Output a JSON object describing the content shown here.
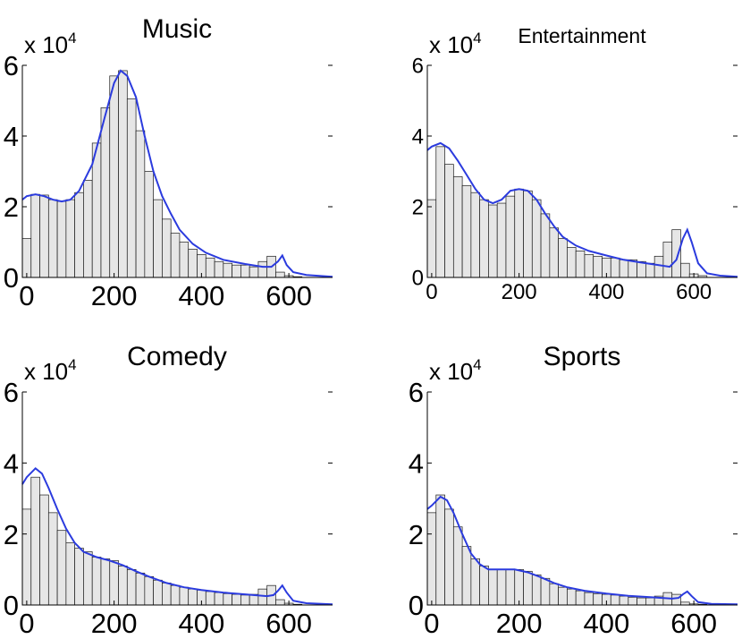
{
  "colors": {
    "bar_fill": "#e6e6e6",
    "bar_edge": "#1a1a1a",
    "curve": "#2b3bde"
  },
  "chart_data": [
    {
      "type": "bar",
      "title": "Music",
      "scale_label": "x 10",
      "scale_exponent": "4",
      "x_range": [
        -10,
        700
      ],
      "ylim": [
        0,
        6
      ],
      "x_ticks": [
        0,
        200,
        400,
        600
      ],
      "y_ticks": [
        0,
        2,
        4,
        6
      ],
      "bin_width": 20,
      "values": [
        1.1,
        2.35,
        2.33,
        2.2,
        2.15,
        2.2,
        2.4,
        2.75,
        3.8,
        4.8,
        5.7,
        5.85,
        5.05,
        4.15,
        3.0,
        2.2,
        1.65,
        1.25,
        1.0,
        0.8,
        0.65,
        0.55,
        0.45,
        0.4,
        0.35,
        0.35,
        0.3,
        0.45,
        0.6,
        0.15,
        0.05,
        0.02
      ],
      "curve": [
        [
          -10,
          2.2
        ],
        [
          0,
          2.3
        ],
        [
          20,
          2.35
        ],
        [
          40,
          2.3
        ],
        [
          60,
          2.2
        ],
        [
          80,
          2.15
        ],
        [
          100,
          2.2
        ],
        [
          120,
          2.45
        ],
        [
          150,
          3.2
        ],
        [
          180,
          4.6
        ],
        [
          200,
          5.5
        ],
        [
          215,
          5.85
        ],
        [
          230,
          5.7
        ],
        [
          250,
          5.1
        ],
        [
          270,
          4.0
        ],
        [
          290,
          3.0
        ],
        [
          310,
          2.3
        ],
        [
          330,
          1.8
        ],
        [
          350,
          1.35
        ],
        [
          380,
          0.95
        ],
        [
          410,
          0.7
        ],
        [
          450,
          0.5
        ],
        [
          500,
          0.38
        ],
        [
          540,
          0.3
        ],
        [
          560,
          0.3
        ],
        [
          575,
          0.45
        ],
        [
          585,
          0.62
        ],
        [
          595,
          0.35
        ],
        [
          610,
          0.15
        ],
        [
          640,
          0.07
        ],
        [
          700,
          0.02
        ]
      ]
    },
    {
      "type": "bar",
      "title": "Entertainment",
      "scale_label": "x 10",
      "scale_exponent": "4",
      "x_range": [
        -10,
        700
      ],
      "ylim": [
        0,
        6
      ],
      "x_ticks": [
        0,
        200,
        400,
        600
      ],
      "y_ticks": [
        0,
        2,
        4,
        6
      ],
      "bin_width": 20,
      "values": [
        2.2,
        3.7,
        3.2,
        2.85,
        2.6,
        2.4,
        2.2,
        2.05,
        2.1,
        2.3,
        2.5,
        2.45,
        2.2,
        1.8,
        1.4,
        1.1,
        0.85,
        0.75,
        0.65,
        0.6,
        0.55,
        0.55,
        0.5,
        0.5,
        0.45,
        0.4,
        0.6,
        1.0,
        1.35,
        0.4,
        0.1,
        0.05
      ],
      "curve": [
        [
          -10,
          3.6
        ],
        [
          0,
          3.7
        ],
        [
          20,
          3.8
        ],
        [
          40,
          3.65
        ],
        [
          60,
          3.3
        ],
        [
          80,
          2.9
        ],
        [
          100,
          2.5
        ],
        [
          120,
          2.2
        ],
        [
          140,
          2.1
        ],
        [
          160,
          2.2
        ],
        [
          180,
          2.45
        ],
        [
          200,
          2.5
        ],
        [
          220,
          2.45
        ],
        [
          240,
          2.2
        ],
        [
          260,
          1.8
        ],
        [
          280,
          1.45
        ],
        [
          300,
          1.15
        ],
        [
          330,
          0.9
        ],
        [
          360,
          0.75
        ],
        [
          400,
          0.62
        ],
        [
          440,
          0.5
        ],
        [
          480,
          0.42
        ],
        [
          520,
          0.35
        ],
        [
          545,
          0.3
        ],
        [
          560,
          0.5
        ],
        [
          575,
          1.1
        ],
        [
          585,
          1.35
        ],
        [
          595,
          1.0
        ],
        [
          610,
          0.4
        ],
        [
          630,
          0.12
        ],
        [
          660,
          0.05
        ],
        [
          700,
          0.02
        ]
      ]
    },
    {
      "type": "bar",
      "title": "Comedy",
      "scale_label": "x 10",
      "scale_exponent": "4",
      "x_range": [
        -10,
        700
      ],
      "ylim": [
        0,
        6
      ],
      "x_ticks": [
        0,
        200,
        400,
        600
      ],
      "y_ticks": [
        0,
        2,
        4,
        6
      ],
      "bin_width": 20,
      "values": [
        2.7,
        3.6,
        3.1,
        2.6,
        2.1,
        1.75,
        1.6,
        1.5,
        1.35,
        1.3,
        1.25,
        1.1,
        1.0,
        0.9,
        0.8,
        0.7,
        0.62,
        0.55,
        0.5,
        0.45,
        0.42,
        0.38,
        0.35,
        0.32,
        0.3,
        0.28,
        0.3,
        0.45,
        0.55,
        0.15,
        0.05,
        0.02
      ],
      "curve": [
        [
          -10,
          3.4
        ],
        [
          0,
          3.6
        ],
        [
          20,
          3.85
        ],
        [
          35,
          3.7
        ],
        [
          50,
          3.3
        ],
        [
          70,
          2.7
        ],
        [
          90,
          2.15
        ],
        [
          110,
          1.75
        ],
        [
          130,
          1.5
        ],
        [
          160,
          1.35
        ],
        [
          190,
          1.25
        ],
        [
          220,
          1.12
        ],
        [
          250,
          0.95
        ],
        [
          280,
          0.8
        ],
        [
          320,
          0.62
        ],
        [
          360,
          0.5
        ],
        [
          400,
          0.42
        ],
        [
          450,
          0.35
        ],
        [
          500,
          0.3
        ],
        [
          550,
          0.25
        ],
        [
          565,
          0.28
        ],
        [
          575,
          0.4
        ],
        [
          585,
          0.55
        ],
        [
          595,
          0.35
        ],
        [
          610,
          0.12
        ],
        [
          640,
          0.05
        ],
        [
          700,
          0.02
        ]
      ]
    },
    {
      "type": "bar",
      "title": "Sports",
      "scale_label": "x 10",
      "scale_exponent": "4",
      "x_range": [
        -10,
        700
      ],
      "ylim": [
        0,
        6
      ],
      "x_ticks": [
        0,
        200,
        400,
        600
      ],
      "y_ticks": [
        0,
        2,
        4,
        6
      ],
      "bin_width": 20,
      "values": [
        2.6,
        3.1,
        2.7,
        2.2,
        1.65,
        1.3,
        1.1,
        1.0,
        1.0,
        1.0,
        1.0,
        0.95,
        0.85,
        0.75,
        0.6,
        0.5,
        0.45,
        0.4,
        0.35,
        0.32,
        0.3,
        0.28,
        0.25,
        0.22,
        0.2,
        0.2,
        0.25,
        0.35,
        0.3,
        0.08,
        0.03,
        0.02
      ],
      "curve": [
        [
          -10,
          2.7
        ],
        [
          0,
          2.8
        ],
        [
          20,
          3.05
        ],
        [
          35,
          2.95
        ],
        [
          50,
          2.6
        ],
        [
          70,
          2.0
        ],
        [
          90,
          1.45
        ],
        [
          110,
          1.15
        ],
        [
          130,
          1.0
        ],
        [
          160,
          1.0
        ],
        [
          190,
          1.0
        ],
        [
          220,
          0.92
        ],
        [
          250,
          0.78
        ],
        [
          280,
          0.62
        ],
        [
          310,
          0.5
        ],
        [
          350,
          0.4
        ],
        [
          400,
          0.32
        ],
        [
          450,
          0.26
        ],
        [
          500,
          0.22
        ],
        [
          550,
          0.18
        ],
        [
          565,
          0.2
        ],
        [
          575,
          0.3
        ],
        [
          585,
          0.38
        ],
        [
          595,
          0.25
        ],
        [
          610,
          0.08
        ],
        [
          640,
          0.03
        ],
        [
          700,
          0.02
        ]
      ]
    }
  ]
}
